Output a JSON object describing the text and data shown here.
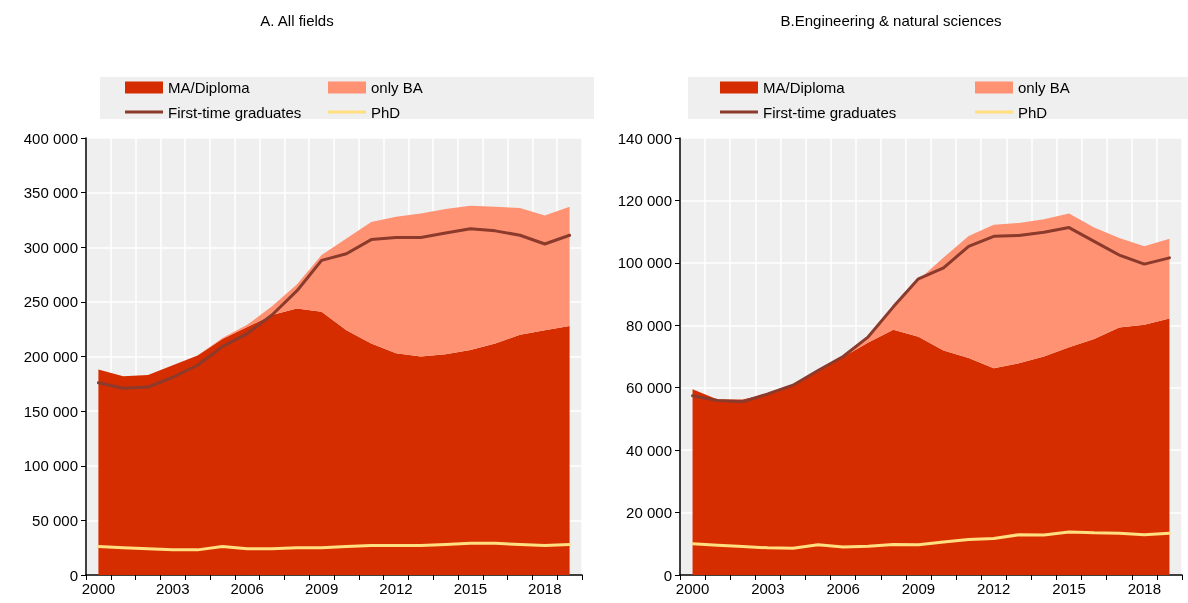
{
  "chart_data": [
    {
      "type": "area",
      "title": "A. All fields",
      "stacked": true,
      "grid": true,
      "legend": "top",
      "categories": [
        "2000",
        null,
        null,
        "2003",
        null,
        null,
        "2006",
        null,
        null,
        "2009",
        null,
        null,
        "2012",
        null,
        null,
        "2015",
        null,
        null,
        "2018",
        null
      ],
      "ylim": [
        0,
        400000
      ],
      "yticks": [
        {
          "value": 0,
          "label": "0"
        },
        {
          "value": 50000,
          "label": "50 000"
        },
        {
          "value": 100000,
          "label": "100 000"
        },
        {
          "value": 150000,
          "label": "150 000"
        },
        {
          "value": 200000,
          "label": "200 000"
        },
        {
          "value": 250000,
          "label": "250 000"
        },
        {
          "value": 300000,
          "label": "300 000"
        },
        {
          "value": 350000,
          "label": "350 000"
        },
        {
          "value": 400000,
          "label": "400 000"
        }
      ],
      "series": [
        {
          "name": "MA/Diploma",
          "type": "area",
          "color": "#d62d00",
          "values": [
            188000,
            182000,
            183000,
            192000,
            201000,
            216000,
            227000,
            238000,
            244000,
            241000,
            224000,
            212000,
            203000,
            200000,
            202000,
            206000,
            212000,
            220000,
            224000,
            228000
          ]
        },
        {
          "name": "only BA",
          "type": "area",
          "color": "#ff9273",
          "values": [
            0,
            0,
            0,
            0,
            0,
            1000,
            2000,
            8000,
            22000,
            52000,
            84000,
            111000,
            125000,
            131000,
            133000,
            132000,
            125000,
            116000,
            105000,
            109000
          ]
        },
        {
          "name": "First-time graduates",
          "type": "line",
          "color": "#8b3a2b",
          "values": [
            176000,
            171000,
            172000,
            181000,
            192000,
            209000,
            221000,
            238000,
            260000,
            288000,
            294000,
            307000,
            309000,
            309000,
            313000,
            317000,
            315000,
            311000,
            303000,
            311000
          ]
        },
        {
          "name": "PhD",
          "type": "line",
          "color": "#ffdf80",
          "values": [
            26000,
            25000,
            24000,
            23000,
            23000,
            26000,
            24000,
            24000,
            25000,
            25000,
            26000,
            27000,
            27000,
            27000,
            28000,
            29000,
            29000,
            28000,
            27000,
            28000
          ]
        }
      ]
    },
    {
      "type": "area",
      "title": "B.Engineering & natural sciences",
      "stacked": true,
      "grid": true,
      "legend": "top",
      "categories": [
        "2000",
        null,
        null,
        "2003",
        null,
        null,
        "2006",
        null,
        null,
        "2009",
        null,
        null,
        "2012",
        null,
        null,
        "2015",
        null,
        null,
        "2018",
        null
      ],
      "ylim": [
        0,
        140000
      ],
      "yticks": [
        {
          "value": 0,
          "label": "0"
        },
        {
          "value": 20000,
          "label": "20 000"
        },
        {
          "value": 40000,
          "label": "40 000"
        },
        {
          "value": 60000,
          "label": "60 000"
        },
        {
          "value": 80000,
          "label": "80 000"
        },
        {
          "value": 100000,
          "label": "100 000"
        },
        {
          "value": 120000,
          "label": "120 000"
        },
        {
          "value": 140000,
          "label": "140 000"
        }
      ],
      "series": [
        {
          "name": "MA/Diploma",
          "type": "area",
          "color": "#d62d00",
          "values": [
            59500,
            56200,
            56200,
            58000,
            60700,
            65200,
            69800,
            74500,
            78600,
            76300,
            71900,
            69500,
            66200,
            67800,
            70000,
            73000,
            75600,
            79300,
            80200,
            82200
          ]
        },
        {
          "name": "only BA",
          "type": "area",
          "color": "#ff9273",
          "values": [
            0,
            0,
            0,
            0,
            0,
            0,
            0,
            2000,
            7000,
            18200,
            29800,
            39100,
            46000,
            45000,
            44000,
            42800,
            35700,
            28700,
            25100,
            25500
          ]
        },
        {
          "name": "First-time graduates",
          "type": "line",
          "color": "#8b3a2b",
          "values": [
            57400,
            55900,
            55500,
            58000,
            60800,
            65500,
            70000,
            76300,
            85900,
            94900,
            98400,
            105300,
            108500,
            108800,
            109800,
            111300,
            106900,
            102500,
            99600,
            101600
          ]
        },
        {
          "name": "PhD",
          "type": "line",
          "color": "#ffdf80",
          "values": [
            10000,
            9500,
            9100,
            8700,
            8600,
            9700,
            9000,
            9200,
            9800,
            9700,
            10600,
            11400,
            11700,
            12900,
            12800,
            13800,
            13500,
            13400,
            12900,
            13400
          ]
        }
      ]
    }
  ]
}
